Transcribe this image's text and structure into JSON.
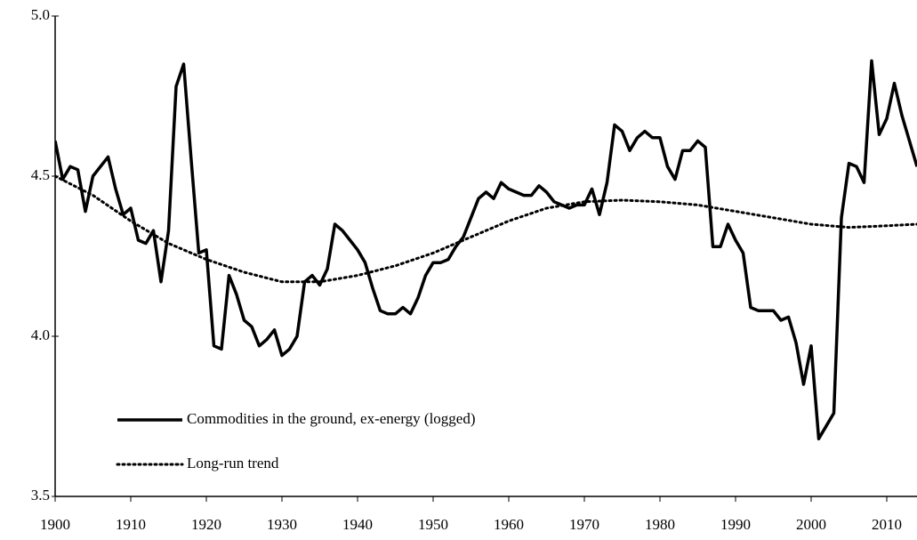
{
  "chart_data": {
    "type": "line",
    "x": [
      1900,
      1901,
      1902,
      1903,
      1904,
      1905,
      1906,
      1907,
      1908,
      1909,
      1910,
      1911,
      1912,
      1913,
      1914,
      1915,
      1916,
      1917,
      1918,
      1919,
      1920,
      1921,
      1922,
      1923,
      1924,
      1925,
      1926,
      1927,
      1928,
      1929,
      1930,
      1931,
      1932,
      1933,
      1934,
      1935,
      1936,
      1937,
      1938,
      1939,
      1940,
      1941,
      1942,
      1943,
      1944,
      1945,
      1946,
      1947,
      1948,
      1949,
      1950,
      1951,
      1952,
      1953,
      1954,
      1955,
      1956,
      1957,
      1958,
      1959,
      1960,
      1961,
      1962,
      1963,
      1964,
      1965,
      1966,
      1967,
      1968,
      1969,
      1970,
      1971,
      1972,
      1973,
      1974,
      1975,
      1976,
      1977,
      1978,
      1979,
      1980,
      1981,
      1982,
      1983,
      1984,
      1985,
      1986,
      1987,
      1988,
      1989,
      1990,
      1991,
      1992,
      1993,
      1994,
      1995,
      1996,
      1997,
      1998,
      1999,
      2000,
      2001,
      2002,
      2003,
      2004,
      2005,
      2006,
      2007,
      2008,
      2009,
      2010,
      2011,
      2012,
      2013,
      2014
    ],
    "series": [
      {
        "name": "Commodities in the ground, ex-energy (logged)",
        "color": "#000000",
        "style": "solid",
        "values": [
          4.61,
          4.49,
          4.53,
          4.52,
          4.39,
          4.5,
          4.53,
          4.56,
          4.46,
          4.38,
          4.4,
          4.3,
          4.29,
          4.33,
          4.17,
          4.33,
          4.78,
          4.85,
          4.55,
          4.26,
          4.27,
          3.97,
          3.96,
          4.19,
          4.13,
          4.05,
          4.03,
          3.97,
          3.99,
          4.02,
          3.94,
          3.96,
          4.0,
          4.17,
          4.19,
          4.16,
          4.21,
          4.35,
          4.33,
          4.3,
          4.27,
          4.23,
          4.15,
          4.08,
          4.07,
          4.07,
          4.09,
          4.07,
          4.12,
          4.19,
          4.23,
          4.23,
          4.24,
          4.28,
          4.31,
          4.37,
          4.43,
          4.45,
          4.43,
          4.48,
          4.46,
          4.45,
          4.44,
          4.44,
          4.47,
          4.45,
          4.42,
          4.41,
          4.4,
          4.41,
          4.41,
          4.46,
          4.38,
          4.48,
          4.66,
          4.64,
          4.58,
          4.62,
          4.64,
          4.62,
          4.62,
          4.53,
          4.49,
          4.58,
          4.58,
          4.61,
          4.59,
          4.28,
          4.28,
          4.35,
          4.3,
          4.26,
          4.09,
          4.08,
          4.08,
          4.08,
          4.05,
          4.06,
          3.98,
          3.85,
          3.97,
          3.68,
          3.72,
          3.76,
          4.37,
          4.54,
          4.53,
          4.48,
          4.86,
          4.63,
          4.68,
          4.79,
          4.69,
          4.61,
          4.53
        ]
      },
      {
        "name": "Long-run trend",
        "color": "#000000",
        "style": "dotted",
        "x": [
          1900,
          1905,
          1910,
          1915,
          1920,
          1925,
          1930,
          1935,
          1940,
          1945,
          1950,
          1955,
          1960,
          1965,
          1970,
          1975,
          1980,
          1985,
          1990,
          1995,
          2000,
          2005,
          2010,
          2014
        ],
        "values": [
          4.5,
          4.44,
          4.36,
          4.29,
          4.24,
          4.2,
          4.17,
          4.17,
          4.19,
          4.22,
          4.26,
          4.31,
          4.36,
          4.4,
          4.42,
          4.425,
          4.42,
          4.41,
          4.39,
          4.37,
          4.35,
          4.34,
          4.345,
          4.35
        ]
      }
    ],
    "xlim": [
      1900,
      2014
    ],
    "xticks": [
      1900,
      1910,
      1920,
      1930,
      1940,
      1950,
      1960,
      1970,
      1980,
      1990,
      2000,
      2010
    ],
    "ylim": [
      3.5,
      5.0
    ],
    "yticks": [
      {
        "value": 3.5,
        "label": "3.5"
      },
      {
        "value": 4,
        "label": "4.0"
      },
      {
        "value": 4.5,
        "label": "4.5"
      },
      {
        "value": 5,
        "label": "5.0"
      }
    ],
    "legend": "lower left"
  }
}
